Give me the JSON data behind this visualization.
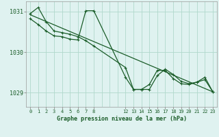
{
  "background_color": "#dff2f0",
  "grid_color": "#b0d8cc",
  "line_color": "#1a5c28",
  "xlabel": "Graphe pression niveau de la mer (hPa)",
  "ylim": [
    1028.65,
    1031.25
  ],
  "yticks": [
    1029,
    1030,
    1031
  ],
  "series": [
    {
      "x": [
        0,
        1,
        2,
        3,
        4,
        5,
        6,
        7,
        8,
        12,
        13,
        14,
        15,
        16,
        17,
        18,
        19,
        20,
        21,
        22,
        23
      ],
      "y": [
        1030.95,
        1031.1,
        1030.75,
        1030.52,
        1030.48,
        1030.44,
        1030.38,
        1030.28,
        1030.15,
        1029.62,
        1029.08,
        1029.08,
        1029.08,
        1029.42,
        1029.58,
        1029.45,
        1029.28,
        1029.22,
        1029.26,
        1029.32,
        1029.02
      ]
    },
    {
      "x": [
        0,
        1,
        2,
        3,
        4,
        5,
        6,
        7,
        8,
        12,
        13,
        14,
        15,
        16,
        17,
        18,
        19,
        20,
        21,
        22,
        23
      ],
      "y": [
        1030.82,
        1030.68,
        1030.52,
        1030.4,
        1030.38,
        1030.32,
        1030.3,
        1031.02,
        1031.02,
        1029.38,
        1029.08,
        1029.08,
        1029.2,
        1029.55,
        1029.55,
        1029.35,
        1029.22,
        1029.2,
        1029.26,
        1029.38,
        1029.02
      ]
    },
    {
      "x": [
        0,
        23
      ],
      "y": [
        1030.92,
        1029.02
      ]
    }
  ],
  "left_xtick_pos": [
    0,
    1,
    2,
    3,
    4,
    5,
    6,
    7,
    8
  ],
  "right_xtick_pos": [
    12,
    13,
    14,
    15,
    16,
    17,
    18,
    19,
    20,
    21,
    22,
    23
  ],
  "left_xtick_labels": [
    "0",
    "1",
    "2",
    "3",
    "4",
    "5",
    "6",
    "7",
    "8"
  ],
  "right_xtick_labels": [
    "12",
    "13",
    "14",
    "15",
    "16",
    "17",
    "18",
    "19",
    "20",
    "21",
    "22",
    "23"
  ],
  "figsize": [
    3.2,
    2.0
  ],
  "dpi": 100
}
